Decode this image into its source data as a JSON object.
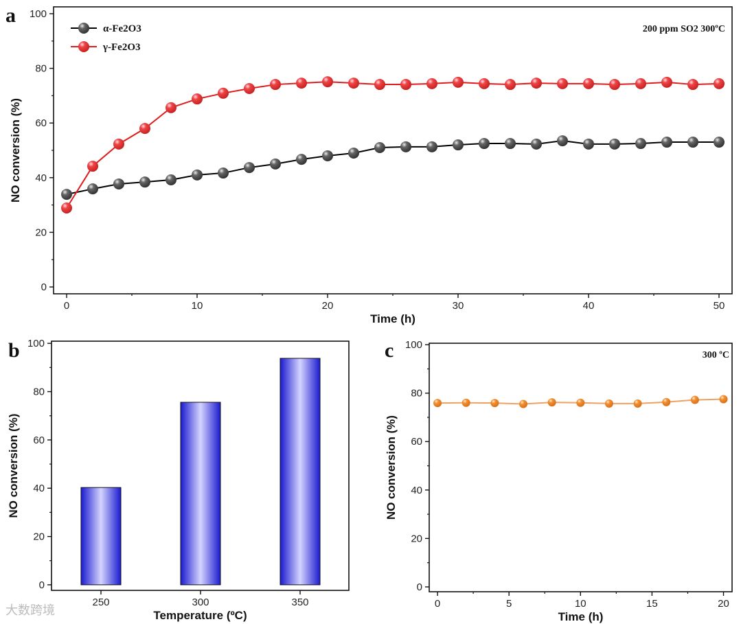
{
  "chart_data": [
    {
      "panel": "a",
      "type": "line",
      "annotation": "200 ppm SO2 300ºC",
      "xlabel": "Time (h)",
      "ylabel": "NO conversion (%)",
      "xlim": [
        -1,
        51
      ],
      "ylim": [
        -2.5,
        102.5
      ],
      "xticks": [
        0,
        10,
        20,
        30,
        40,
        50
      ],
      "yticks": [
        0,
        20,
        40,
        60,
        80,
        100
      ],
      "legend_position": "top-left",
      "x": [
        0,
        2,
        4,
        6,
        8,
        10,
        12,
        14,
        16,
        18,
        20,
        22,
        24,
        26,
        28,
        30,
        32,
        34,
        36,
        38,
        40,
        42,
        44,
        46,
        48,
        50
      ],
      "series": [
        {
          "name": "α-Fe2O3",
          "color": "#555555",
          "line": "#000000",
          "values": [
            33.9,
            35.9,
            37.7,
            38.4,
            39.2,
            41.0,
            41.7,
            43.7,
            45.0,
            46.7,
            48.0,
            49.0,
            51.0,
            51.3,
            51.3,
            52.0,
            52.5,
            52.5,
            52.3,
            53.5,
            52.3,
            52.3,
            52.5,
            53.0,
            53.0,
            53.0
          ]
        },
        {
          "name": "γ-Fe2O3",
          "color": "#e8393a",
          "line": "#e01b1b",
          "values": [
            28.9,
            44.2,
            52.3,
            58.0,
            65.6,
            68.8,
            70.9,
            72.6,
            74.1,
            74.6,
            75.1,
            74.6,
            74.1,
            74.1,
            74.4,
            74.9,
            74.4,
            74.1,
            74.6,
            74.4,
            74.4,
            74.1,
            74.4,
            74.9,
            74.1,
            74.4
          ]
        }
      ]
    },
    {
      "panel": "b",
      "type": "bar",
      "xlabel": "Temperature (ºC)",
      "ylabel": "NO conversion (%)",
      "ylim": [
        -2.3,
        100.9
      ],
      "yticks": [
        0,
        20,
        40,
        60,
        80,
        100
      ],
      "categories": [
        "250",
        "300",
        "350"
      ],
      "values": [
        40.3,
        75.6,
        93.8
      ],
      "color": "#2222cc"
    },
    {
      "panel": "c",
      "type": "line",
      "annotation": "300 ºC",
      "xlabel": "Time (h)",
      "ylabel": "NO conversion (%)",
      "xlim": [
        -0.58,
        20.6
      ],
      "ylim": [
        -2,
        100.6
      ],
      "xticks": [
        0,
        5,
        10,
        15,
        20
      ],
      "yticks": [
        0,
        20,
        40,
        60,
        80,
        100
      ],
      "x": [
        0,
        2,
        4,
        6,
        8,
        10,
        12,
        14,
        16,
        18,
        20
      ],
      "series": [
        {
          "name": "NO conversion",
          "color": "#f08a2c",
          "line": "#f0a060",
          "values": [
            75.9,
            76.0,
            75.9,
            75.5,
            76.2,
            76.0,
            75.7,
            75.7,
            76.3,
            77.2,
            77.5
          ]
        }
      ]
    }
  ],
  "watermark": "大数跨境"
}
